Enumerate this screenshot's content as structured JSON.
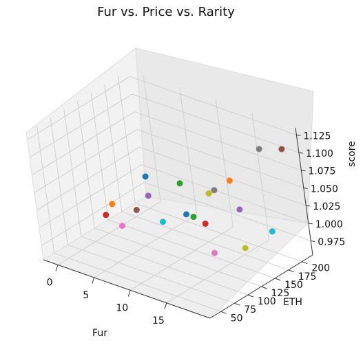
{
  "chart_data": {
    "type": "scatter3d",
    "title": "Fur vs. Price vs. Rarity",
    "xlabel": "Fur",
    "ylabel": "ETH",
    "zlabel": "score",
    "x_ticks": [
      "0",
      "5",
      "10",
      "15"
    ],
    "y_ticks": [
      "50",
      "75",
      "100",
      "125",
      "150",
      "175",
      "200"
    ],
    "z_ticks": [
      "0.975",
      "1.000",
      "1.025",
      "1.050",
      "1.075",
      "1.100",
      "1.125"
    ],
    "xlim": [
      -2,
      21
    ],
    "ylim": [
      30,
      220
    ],
    "zlim": [
      0.955,
      1.135
    ],
    "grid": true,
    "points": [
      {
        "x": 0,
        "y": 200,
        "z": 1.0,
        "color": "#1f77b4"
      },
      {
        "x": 4,
        "y": 210,
        "z": 1.0,
        "color": "#2ca02c"
      },
      {
        "x": 8,
        "y": 210,
        "z": 1.0,
        "color": "#bcbd22"
      },
      {
        "x": 8,
        "y": 220,
        "z": 1.0,
        "color": "#7f7f7f"
      },
      {
        "x": 8,
        "y": 250,
        "z": 1.0,
        "color": "#ff7f0e"
      },
      {
        "x": 3,
        "y": 165,
        "z": 1.0,
        "color": "#9467bd"
      },
      {
        "x": 1,
        "y": 125,
        "z": 1.0,
        "color": "#ff7f0e"
      },
      {
        "x": 4,
        "y": 130,
        "z": 1.0,
        "color": "#8c564b"
      },
      {
        "x": 2,
        "y": 100,
        "z": 1.0,
        "color": "#d62728"
      },
      {
        "x": 5,
        "y": 90,
        "z": 1.0,
        "color": "#e377c2"
      },
      {
        "x": 8,
        "y": 125,
        "z": 1.0,
        "color": "#17becf"
      },
      {
        "x": 9,
        "y": 155,
        "z": 1.0,
        "color": "#1f77b4"
      },
      {
        "x": 10,
        "y": 155,
        "z": 1.0,
        "color": "#2ca02c"
      },
      {
        "x": 12,
        "y": 150,
        "z": 1.0,
        "color": "#d62728"
      },
      {
        "x": 13,
        "y": 200,
        "z": 1.0,
        "color": "#9467bd"
      },
      {
        "x": 17,
        "y": 100,
        "z": 1.0,
        "color": "#e377c2"
      },
      {
        "x": 19,
        "y": 130,
        "z": 1.0,
        "color": "#bcbd22"
      },
      {
        "x": 19,
        "y": 180,
        "z": 1.0,
        "color": "#17becf"
      },
      {
        "x": 17,
        "y": 200,
        "z": 1.1,
        "color": "#7f7f7f"
      },
      {
        "x": 19,
        "y": 215,
        "z": 1.1,
        "color": "#8c564b"
      }
    ]
  }
}
